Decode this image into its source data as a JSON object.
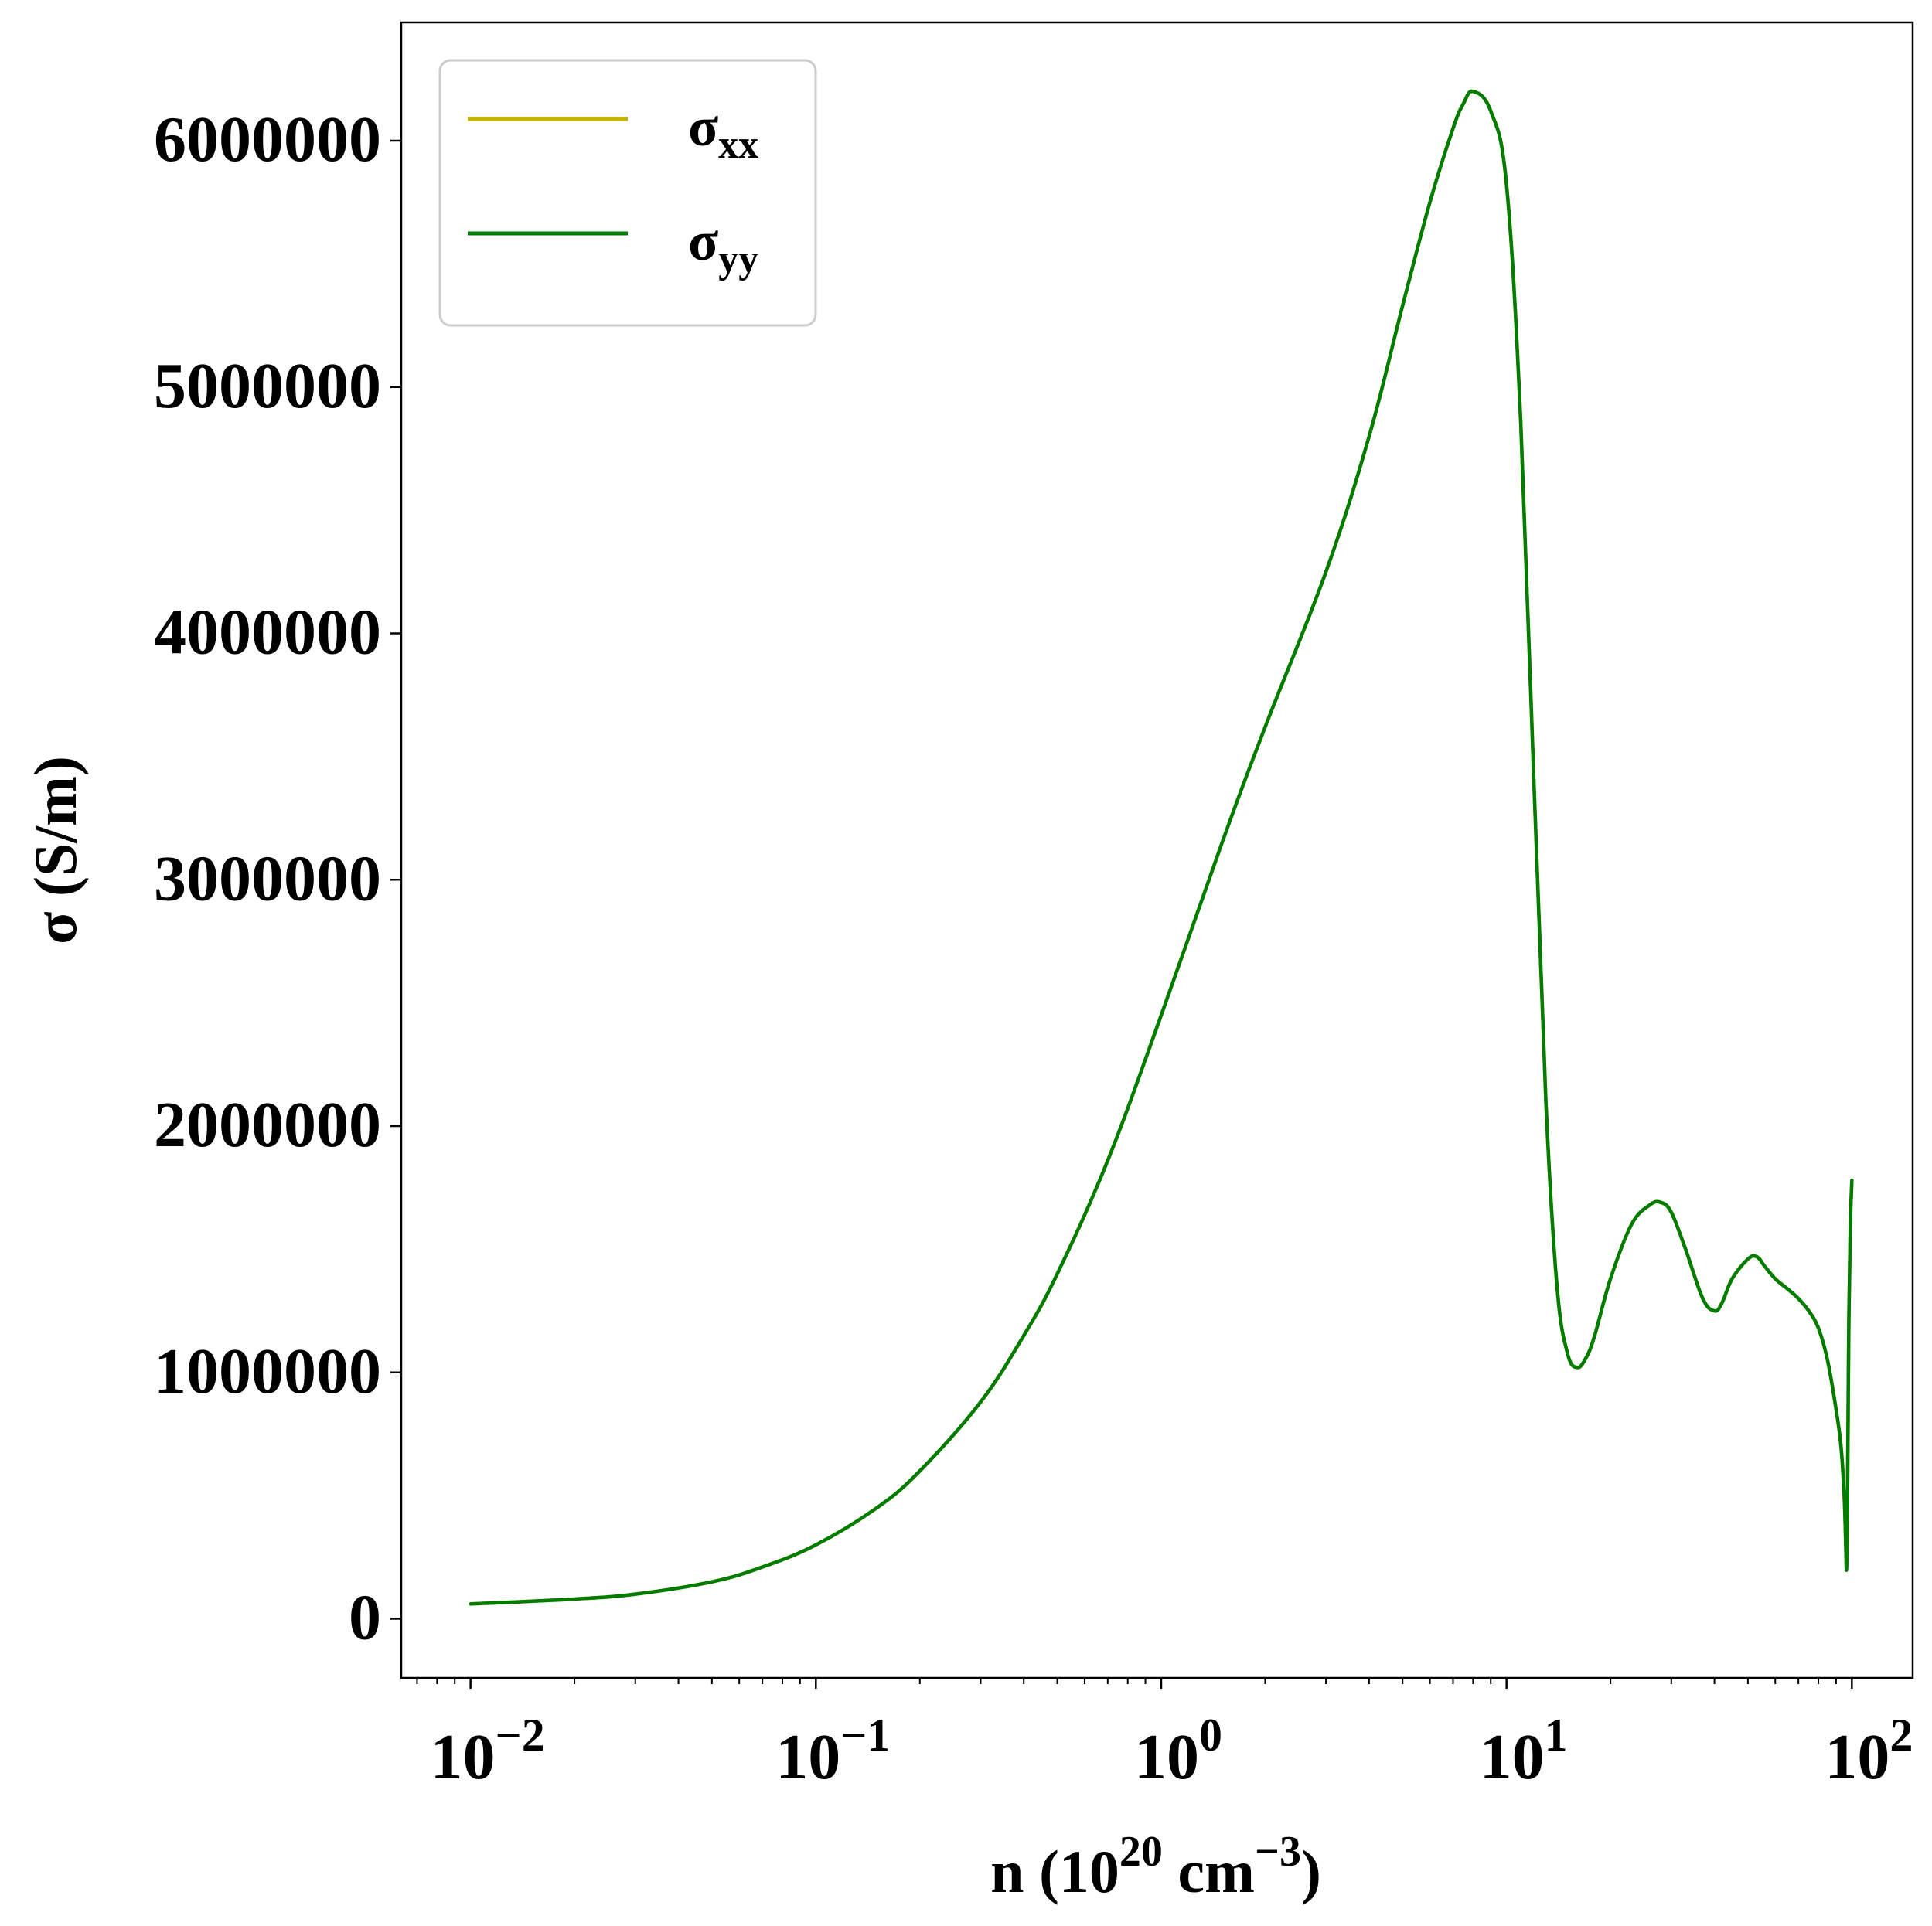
{
  "chart_data": {
    "type": "line",
    "x_scale": "log",
    "xlim": [
      0.0063,
      150
    ],
    "ylim": [
      -240000,
      6480000
    ],
    "x_ticks": [
      {
        "value": 0.01,
        "base": "10",
        "exp": "−2"
      },
      {
        "value": 0.1,
        "base": "10",
        "exp": "−1"
      },
      {
        "value": 1,
        "base": "10",
        "exp": "0"
      },
      {
        "value": 10,
        "base": "10",
        "exp": "1"
      },
      {
        "value": 100,
        "base": "10",
        "exp": "2"
      }
    ],
    "y_ticks": [
      {
        "value": 0,
        "label": "0"
      },
      {
        "value": 1000000,
        "label": "1000000"
      },
      {
        "value": 2000000,
        "label": "2000000"
      },
      {
        "value": 3000000,
        "label": "3000000"
      },
      {
        "value": 4000000,
        "label": "4000000"
      },
      {
        "value": 5000000,
        "label": "5000000"
      },
      {
        "value": 6000000,
        "label": "6000000"
      }
    ],
    "xlabel": {
      "prefix": "n (10",
      "sup1": "20",
      "mid": " cm",
      "sup2": "−3",
      "suffix": ")"
    },
    "ylabel": "σ (S/m)",
    "legend": {
      "position": "upper-left",
      "entries": [
        {
          "symbol": "σ",
          "sub": "xx",
          "color": "#c8b400"
        },
        {
          "symbol": "σ",
          "sub": "yy",
          "color": "#007d00"
        }
      ]
    },
    "series": [
      {
        "name": "σxx",
        "color": "#c8b400",
        "x": [
          0.01,
          0.02,
          0.03,
          0.05,
          0.07,
          0.1,
          0.15,
          0.2,
          0.3,
          0.4,
          0.5,
          0.7,
          1.0,
          1.5,
          2.0,
          3.0,
          4.0,
          5.0,
          6.0,
          7.0,
          7.5,
          8.0,
          9.0,
          10.0,
          11.0,
          12.0,
          13.0,
          14.0,
          15.0,
          16.0,
          17.0,
          18.0,
          20.0,
          23.0,
          26.0,
          28.0,
          30.0,
          33.0,
          37.0,
          40.0,
          42.0,
          45.0,
          50.0,
          53.0,
          56.0,
          60.0,
          65.0,
          70.0,
          75.0,
          80.0,
          85.0,
          90.0,
          93.0,
          95.0,
          96.0,
          96.5,
          97.0,
          97.5,
          98.0,
          99.0,
          100.0
        ],
        "y": [
          60000,
          80000,
          100000,
          150000,
          210000,
          300000,
          450000,
          600000,
          880000,
          1150000,
          1400000,
          1860000,
          2450000,
          3150000,
          3620000,
          4250000,
          4800000,
          5330000,
          5750000,
          6050000,
          6150000,
          6200000,
          6120000,
          5820000,
          4850000,
          3400000,
          2100000,
          1350000,
          1080000,
          1020000,
          1060000,
          1150000,
          1380000,
          1600000,
          1680000,
          1690000,
          1650000,
          1500000,
          1300000,
          1250000,
          1280000,
          1380000,
          1460000,
          1470000,
          1430000,
          1380000,
          1340000,
          1300000,
          1250000,
          1180000,
          1050000,
          850000,
          700000,
          500000,
          300000,
          200000,
          400000,
          800000,
          1200000,
          1600000,
          1780000
        ]
      },
      {
        "name": "σyy",
        "color": "#007d00",
        "x": [
          0.01,
          0.02,
          0.03,
          0.05,
          0.07,
          0.1,
          0.15,
          0.2,
          0.3,
          0.4,
          0.5,
          0.7,
          1.0,
          1.5,
          2.0,
          3.0,
          4.0,
          5.0,
          6.0,
          7.0,
          7.5,
          8.0,
          9.0,
          10.0,
          11.0,
          12.0,
          13.0,
          14.0,
          15.0,
          16.0,
          17.0,
          18.0,
          20.0,
          23.0,
          26.0,
          28.0,
          30.0,
          33.0,
          37.0,
          40.0,
          42.0,
          45.0,
          50.0,
          53.0,
          56.0,
          60.0,
          65.0,
          70.0,
          75.0,
          80.0,
          85.0,
          90.0,
          93.0,
          95.0,
          96.0,
          96.5,
          97.0,
          97.5,
          98.0,
          99.0,
          100.0
        ],
        "y": [
          60000,
          80000,
          100000,
          150000,
          210000,
          300000,
          450000,
          600000,
          880000,
          1150000,
          1400000,
          1860000,
          2450000,
          3150000,
          3620000,
          4250000,
          4800000,
          5330000,
          5750000,
          6050000,
          6150000,
          6200000,
          6120000,
          5820000,
          4850000,
          3400000,
          2100000,
          1350000,
          1080000,
          1020000,
          1060000,
          1150000,
          1380000,
          1600000,
          1680000,
          1690000,
          1650000,
          1500000,
          1300000,
          1250000,
          1280000,
          1380000,
          1460000,
          1470000,
          1430000,
          1380000,
          1340000,
          1300000,
          1250000,
          1180000,
          1050000,
          850000,
          700000,
          500000,
          300000,
          200000,
          400000,
          800000,
          1200000,
          1600000,
          1780000
        ]
      }
    ]
  }
}
